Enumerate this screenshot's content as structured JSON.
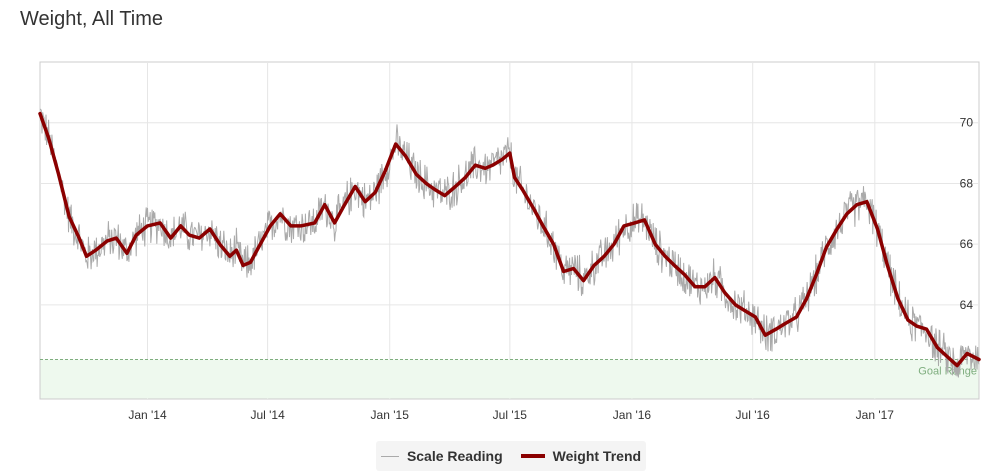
{
  "title": "Weight, All Time",
  "legend": {
    "scale_label": "Scale Reading",
    "trend_label": "Weight Trend"
  },
  "colors": {
    "scale": "#aaaaaa",
    "trend": "#8b0000",
    "goal_fill": "#eef9ee",
    "goal_line": "#7fae7f",
    "grid": "#e6e6e6"
  },
  "chart_data": {
    "type": "line",
    "title": "Weight, All Time",
    "xlim": [
      "2013-07-23",
      "2017-06-07"
    ],
    "ylim": [
      60.9,
      72
    ],
    "grid": true,
    "legend_position": "bottom-center",
    "x_ticks": [
      {
        "date": "2014-01-01",
        "label": "Jan '14"
      },
      {
        "date": "2014-07-01",
        "label": "Jul '14"
      },
      {
        "date": "2015-01-01",
        "label": "Jan '15"
      },
      {
        "date": "2015-07-01",
        "label": "Jul '15"
      },
      {
        "date": "2016-01-01",
        "label": "Jan '16"
      },
      {
        "date": "2016-07-01",
        "label": "Jul '16"
      },
      {
        "date": "2017-01-01",
        "label": "Jan '17"
      }
    ],
    "y_ticks": [
      {
        "value": 64,
        "label": "64"
      },
      {
        "value": 66,
        "label": "66"
      },
      {
        "value": 68,
        "label": "68"
      },
      {
        "value": 70,
        "label": "70"
      }
    ],
    "goal_range": {
      "label": "Goal Range",
      "max": 62.2
    },
    "series": [
      {
        "name": "Weight Trend",
        "points": [
          [
            "2013-07-23",
            70.3
          ],
          [
            "2013-08-05",
            69.5
          ],
          [
            "2013-08-20",
            68.3
          ],
          [
            "2013-09-05",
            66.9
          ],
          [
            "2013-09-20",
            66.2
          ],
          [
            "2013-10-01",
            65.6
          ],
          [
            "2013-10-15",
            65.8
          ],
          [
            "2013-11-01",
            66.1
          ],
          [
            "2013-11-15",
            66.2
          ],
          [
            "2013-12-01",
            65.7
          ],
          [
            "2013-12-15",
            66.3
          ],
          [
            "2014-01-01",
            66.6
          ],
          [
            "2014-01-20",
            66.7
          ],
          [
            "2014-02-05",
            66.2
          ],
          [
            "2014-02-20",
            66.6
          ],
          [
            "2014-03-05",
            66.3
          ],
          [
            "2014-03-20",
            66.2
          ],
          [
            "2014-04-05",
            66.5
          ],
          [
            "2014-04-20",
            66.0
          ],
          [
            "2014-05-05",
            65.6
          ],
          [
            "2014-05-15",
            65.8
          ],
          [
            "2014-05-25",
            65.3
          ],
          [
            "2014-06-05",
            65.4
          ],
          [
            "2014-06-20",
            66.0
          ],
          [
            "2014-07-05",
            66.6
          ],
          [
            "2014-07-20",
            67.0
          ],
          [
            "2014-08-05",
            66.6
          ],
          [
            "2014-08-20",
            66.6
          ],
          [
            "2014-09-10",
            66.7
          ],
          [
            "2014-09-25",
            67.3
          ],
          [
            "2014-10-10",
            66.7
          ],
          [
            "2014-10-25",
            67.3
          ],
          [
            "2014-11-10",
            67.9
          ],
          [
            "2014-11-25",
            67.4
          ],
          [
            "2014-12-10",
            67.7
          ],
          [
            "2014-12-25",
            68.4
          ],
          [
            "2015-01-10",
            69.3
          ],
          [
            "2015-01-25",
            68.9
          ],
          [
            "2015-02-10",
            68.3
          ],
          [
            "2015-02-25",
            68.0
          ],
          [
            "2015-03-10",
            67.8
          ],
          [
            "2015-03-25",
            67.6
          ],
          [
            "2015-04-10",
            67.9
          ],
          [
            "2015-04-25",
            68.2
          ],
          [
            "2015-05-10",
            68.6
          ],
          [
            "2015-05-25",
            68.5
          ],
          [
            "2015-06-05",
            68.6
          ],
          [
            "2015-06-20",
            68.8
          ],
          [
            "2015-07-01",
            69.0
          ],
          [
            "2015-07-08",
            68.2
          ],
          [
            "2015-07-20",
            67.8
          ],
          [
            "2015-08-05",
            67.2
          ],
          [
            "2015-08-20",
            66.6
          ],
          [
            "2015-09-05",
            66.0
          ],
          [
            "2015-09-20",
            65.1
          ],
          [
            "2015-10-05",
            65.2
          ],
          [
            "2015-10-20",
            64.8
          ],
          [
            "2015-11-05",
            65.3
          ],
          [
            "2015-11-20",
            65.6
          ],
          [
            "2015-12-05",
            66.0
          ],
          [
            "2015-12-20",
            66.6
          ],
          [
            "2016-01-05",
            66.7
          ],
          [
            "2016-01-20",
            66.8
          ],
          [
            "2016-02-05",
            66.0
          ],
          [
            "2016-02-20",
            65.6
          ],
          [
            "2016-03-05",
            65.3
          ],
          [
            "2016-03-20",
            65.0
          ],
          [
            "2016-04-05",
            64.6
          ],
          [
            "2016-04-20",
            64.6
          ],
          [
            "2016-05-05",
            64.9
          ],
          [
            "2016-05-20",
            64.4
          ],
          [
            "2016-06-05",
            64.0
          ],
          [
            "2016-06-20",
            63.8
          ],
          [
            "2016-07-05",
            63.6
          ],
          [
            "2016-07-20",
            63.0
          ],
          [
            "2016-08-05",
            63.2
          ],
          [
            "2016-08-20",
            63.4
          ],
          [
            "2016-09-05",
            63.6
          ],
          [
            "2016-09-20",
            64.2
          ],
          [
            "2016-10-05",
            65.0
          ],
          [
            "2016-10-20",
            65.9
          ],
          [
            "2016-11-05",
            66.5
          ],
          [
            "2016-11-20",
            67.0
          ],
          [
            "2016-12-05",
            67.3
          ],
          [
            "2016-12-20",
            67.4
          ],
          [
            "2017-01-05",
            66.5
          ],
          [
            "2017-01-20",
            65.3
          ],
          [
            "2017-02-05",
            64.2
          ],
          [
            "2017-02-20",
            63.5
          ],
          [
            "2017-03-05",
            63.3
          ],
          [
            "2017-03-20",
            63.2
          ],
          [
            "2017-04-05",
            62.6
          ],
          [
            "2017-04-20",
            62.3
          ],
          [
            "2017-05-05",
            62.0
          ],
          [
            "2017-05-20",
            62.4
          ],
          [
            "2017-06-07",
            62.2
          ]
        ]
      },
      {
        "name": "Scale Reading",
        "note_amplitude": 0.55
      }
    ]
  }
}
